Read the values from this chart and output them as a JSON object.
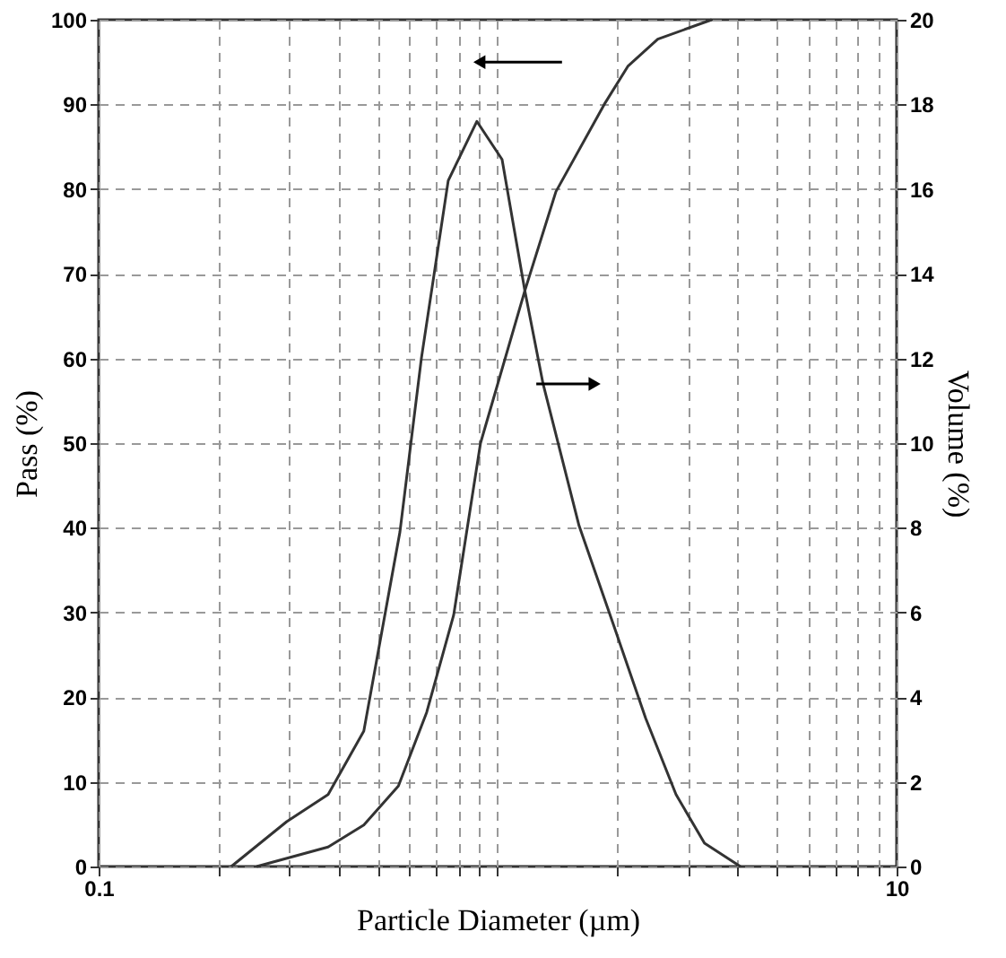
{
  "chart_data": {
    "type": "line",
    "xlabel": "Particle Diameter (µm)",
    "ylabel": "Pass (%)",
    "y2label": "Volume (%)",
    "log": "x",
    "grid": true,
    "line_style": "solid",
    "marker": "none",
    "xlim": [
      0.1,
      10
    ],
    "xticks": [
      0.1,
      {
        "value": 0.2,
        "label": null
      },
      {
        "value": 0.3,
        "label": null
      },
      {
        "value": 0.4,
        "label": null
      },
      {
        "value": 0.5,
        "label": null
      },
      {
        "value": 0.6,
        "label": null
      },
      {
        "value": 0.7,
        "label": null
      },
      {
        "value": 0.8,
        "label": null
      },
      {
        "value": 0.9,
        "label": null
      },
      {
        "value": 1,
        "label": null
      },
      {
        "value": 2,
        "label": null
      },
      {
        "value": 3,
        "label": null
      },
      {
        "value": 4,
        "label": null
      },
      {
        "value": 5,
        "label": null
      },
      {
        "value": 6,
        "label": null
      },
      {
        "value": 7,
        "label": null
      },
      {
        "value": 8,
        "label": null
      },
      {
        "value": 9,
        "label": null
      },
      10
    ],
    "ylim": [
      0,
      100
    ],
    "yticks": [
      0,
      10,
      20,
      30,
      40,
      50,
      60,
      70,
      80,
      90,
      100
    ],
    "y2lim": [
      0,
      20
    ],
    "y2ticks": [
      0,
      2,
      4,
      6,
      8,
      10,
      12,
      14,
      16,
      18,
      20
    ],
    "series": [
      {
        "color": "#333333",
        "x": [
          0.249,
          0.376,
          0.462,
          0.564,
          0.664,
          0.776,
          0.906,
          1.17,
          1.4,
          1.85,
          2.12,
          2.52,
          3.44
        ],
        "values": [
          0,
          2.3,
          4.9,
          9.5,
          18.2,
          29.7,
          50,
          68,
          79.7,
          90,
          94.5,
          97.7,
          100
        ]
      },
      {
        "color": "#333333",
        "axis": "y2",
        "x": [
          0.215,
          0.296,
          0.376,
          0.462,
          0.569,
          0.644,
          0.752,
          0.887,
          1.026,
          1.17,
          1.3,
          1.6,
          1.97,
          2.35,
          2.8,
          3.3,
          4.06
        ],
        "values": [
          0,
          1.06,
          1.7,
          3.2,
          7.9,
          12.0,
          16.2,
          17.6,
          16.7,
          13.6,
          11.4,
          8.05,
          5.6,
          3.5,
          1.7,
          0.55,
          0
        ]
      }
    ]
  }
}
